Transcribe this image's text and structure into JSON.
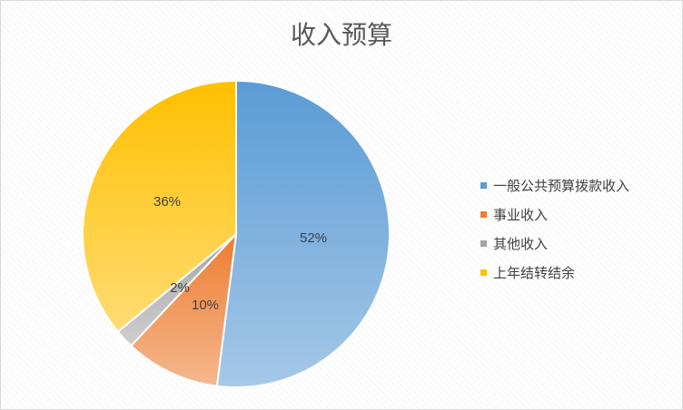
{
  "chart_data": {
    "type": "pie",
    "title": "收入预算",
    "slices": [
      {
        "name": "一般公共预算拨款收入",
        "value": 52,
        "label": "52%",
        "color": "#5b9bd5"
      },
      {
        "name": "事业收入",
        "value": 10,
        "label": "10%",
        "color": "#ed7d31"
      },
      {
        "name": "其他收入",
        "value": 2,
        "label": "2%",
        "color": "#a5a5a5"
      },
      {
        "name": "上年结转结余",
        "value": 36,
        "label": "36%",
        "color": "#ffc000"
      }
    ],
    "legend_position": "right"
  }
}
